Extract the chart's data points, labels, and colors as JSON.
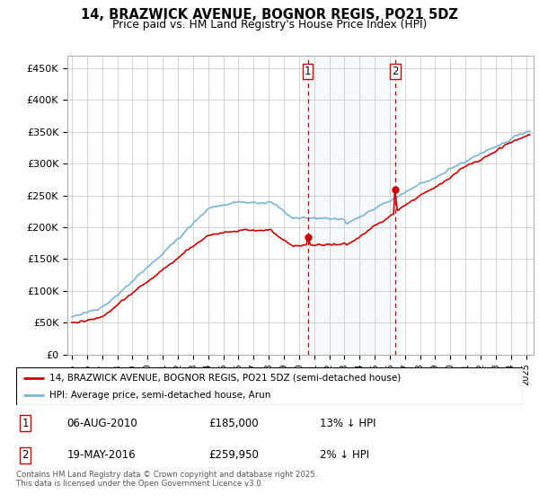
{
  "title": "14, BRAZWICK AVENUE, BOGNOR REGIS, PO21 5DZ",
  "subtitle": "Price paid vs. HM Land Registry's House Price Index (HPI)",
  "ylim": [
    0,
    470000
  ],
  "yticks": [
    0,
    50000,
    100000,
    150000,
    200000,
    250000,
    300000,
    350000,
    400000,
    450000
  ],
  "ytick_labels": [
    "£0",
    "£50K",
    "£100K",
    "£150K",
    "£200K",
    "£250K",
    "£300K",
    "£350K",
    "£400K",
    "£450K"
  ],
  "background_color": "#ffffff",
  "grid_color": "#cccccc",
  "hpi_color": "#7ab4d8",
  "price_color": "#cc0000",
  "purchase1_date_label": "06-AUG-2010",
  "purchase1_price": 185000,
  "purchase1_pct": "13%",
  "purchase2_date_label": "19-MAY-2016",
  "purchase2_price": 259950,
  "purchase2_pct": "2%",
  "legend_property": "14, BRAZWICK AVENUE, BOGNOR REGIS, PO21 5DZ (semi-detached house)",
  "legend_hpi": "HPI: Average price, semi-detached house, Arun",
  "footer": "Contains HM Land Registry data © Crown copyright and database right 2025.\nThis data is licensed under the Open Government Licence v3.0.",
  "vline1_x": 2010.58,
  "vline2_x": 2016.37,
  "purchase1_year": 2010.58,
  "purchase2_year": 2016.37,
  "xmin": 1994.7,
  "xmax": 2025.5
}
